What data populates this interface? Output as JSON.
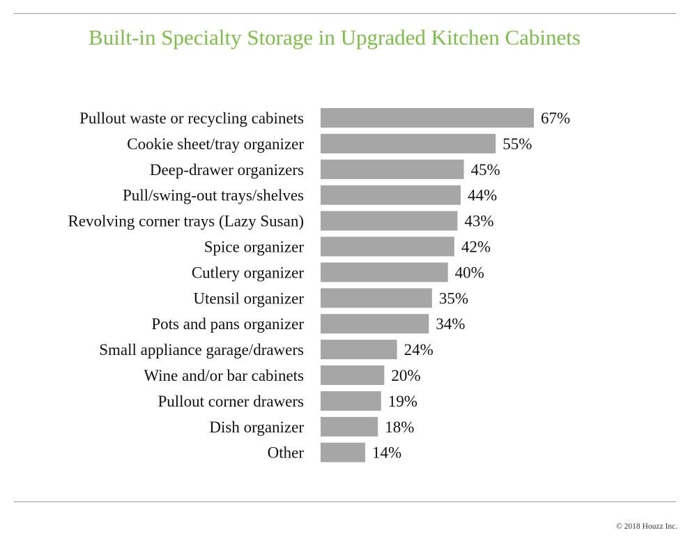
{
  "colors": {
    "title": "#7ac143",
    "bar": "#a6a6a6",
    "rule": "#999999"
  },
  "chart_data": {
    "type": "bar",
    "orientation": "horizontal",
    "title": "Built-in Specialty Storage in Upgraded Kitchen Cabinets",
    "categories": [
      "Pullout waste or recycling cabinets",
      "Cookie sheet/tray organizer",
      "Deep-drawer organizers",
      "Pull/swing-out trays/shelves",
      "Revolving corner trays (Lazy Susan)",
      "Spice organizer",
      "Cutlery organizer",
      "Utensil organizer",
      "Pots and pans organizer",
      "Small appliance garage/drawers",
      "Wine and/or bar cabinets",
      "Pullout corner drawers",
      "Dish organizer",
      "Other"
    ],
    "values": [
      67,
      55,
      45,
      44,
      43,
      42,
      40,
      35,
      34,
      24,
      20,
      19,
      18,
      14
    ],
    "value_labels": [
      "67%",
      "55%",
      "45%",
      "44%",
      "43%",
      "42%",
      "40%",
      "35%",
      "34%",
      "24%",
      "20%",
      "19%",
      "18%",
      "14%"
    ],
    "xlabel": "",
    "ylabel": "",
    "grid": false,
    "legend": "none"
  },
  "footer": {
    "copyright": "© 2018 Houzz Inc."
  }
}
